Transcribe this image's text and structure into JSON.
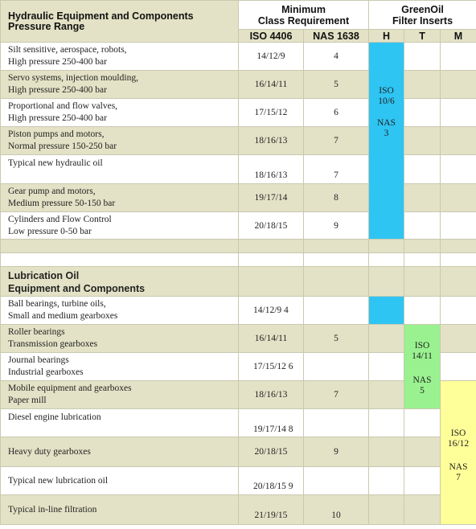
{
  "header": {
    "col1_line1": "Hydraulic Equipment and Components",
    "col1_line2": "Pressure Range",
    "col2_line1": "Minimum",
    "col2_line2": "Class Requirement",
    "col3_line1": "GreenOil",
    "col3_line2": "Filter Inserts",
    "iso": "ISO 4406",
    "nas": "NAS 1638",
    "h": "H",
    "t": "T",
    "m": "M"
  },
  "hydraulic": {
    "rows": [
      {
        "line1": "Silt sensitive, aerospace, robots,",
        "line2": "High pressure 250-400 bar",
        "iso": "14/12/9",
        "nas": "4"
      },
      {
        "line1": "Servo systems, injection moulding,",
        "line2": "High pressure 250-400 bar",
        "iso": "16/14/11",
        "nas": "5"
      },
      {
        "line1": "Proportional and flow valves,",
        "line2": "High pressure 250-400 bar",
        "iso": "17/15/12",
        "nas": "6"
      },
      {
        "line1": "Piston pumps and motors,",
        "line2": "Normal pressure 150-250 bar",
        "iso": "18/16/13",
        "nas": "7"
      },
      {
        "line1": "Typical new hydraulic oil",
        "line2": "",
        "iso": "18/16/13",
        "nas": "7"
      },
      {
        "line1": "Gear pump and motors,",
        "line2": "Medium pressure 50-150 bar",
        "iso": "19/17/14",
        "nas": "8"
      },
      {
        "line1": "Cylinders and Flow Control",
        "line2": "Low pressure 0-50 bar",
        "iso": "20/18/15",
        "nas": "9"
      }
    ],
    "filter_h": {
      "iso_label": "ISO",
      "iso_value": "10/6",
      "nas_label": "NAS",
      "nas_value": "3"
    }
  },
  "lubrication": {
    "title_line1": "Lubrication Oil",
    "title_line2": "Equipment and Components",
    "rows": [
      {
        "line1": "Ball bearings, turbine oils,",
        "line2": "Small and medium gearboxes",
        "iso": "14/12/9 4",
        "nas": ""
      },
      {
        "line1": "Roller bearings",
        "line2": "Transmission gearboxes",
        "iso": "16/14/11",
        "nas": "5"
      },
      {
        "line1": "Journal bearings",
        "line2": "Industrial gearboxes",
        "iso": "17/15/12 6",
        "nas": ""
      },
      {
        "line1": "Mobile equipment and gearboxes",
        "line2": "Paper mill",
        "iso": "18/16/13",
        "nas": "7"
      },
      {
        "line1": "Diesel engine lubrication",
        "line2": "",
        "iso": "19/17/14 8",
        "nas": ""
      },
      {
        "line1": "Heavy duty gearboxes",
        "line2": "",
        "iso": "20/18/15",
        "nas": "9"
      },
      {
        "line1": "Typical new lubrication oil",
        "line2": "",
        "iso": "20/18/15 9",
        "nas": ""
      },
      {
        "line1": "Typical in-line filtration",
        "line2": "",
        "iso": "21/19/15",
        "nas": "10"
      }
    ],
    "filter_t": {
      "iso_label": "ISO",
      "iso_value": "14/11",
      "nas_label": "NAS",
      "nas_value": "5"
    },
    "filter_m": {
      "iso_label": "ISO",
      "iso_value": "16/12",
      "nas_label": "NAS",
      "nas_value": "7"
    }
  },
  "colors": {
    "band": "#e3e2c6",
    "filter_h": "#2ec5f3",
    "filter_t": "#99f28f",
    "filter_m": "#ffff99"
  }
}
